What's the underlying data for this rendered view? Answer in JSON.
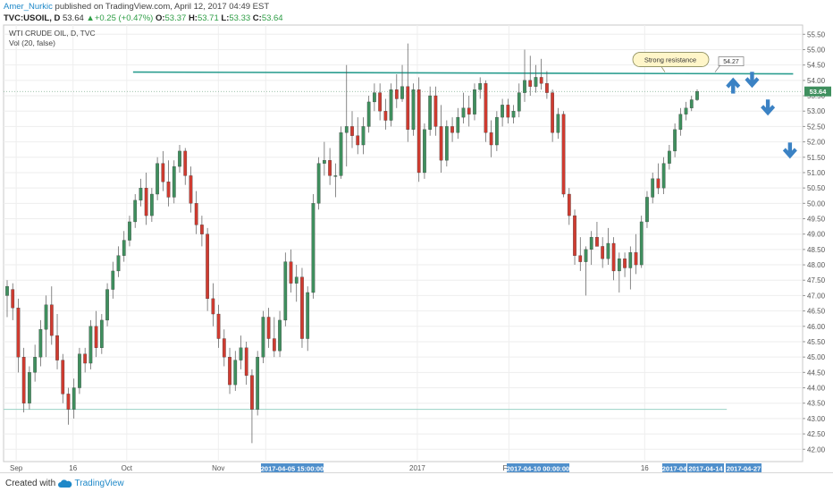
{
  "header": {
    "author": "Amer_Nurkic",
    "published": "published on TradingView.com, April 12, 2017 04:49 EST",
    "symbol": "TVC:USOIL, D",
    "price": "53.64",
    "change": "+0.25 (+0.47%)",
    "o_label": "O:",
    "o_value": "53.37",
    "h_label": "H:",
    "h_value": "53.71",
    "l_label": "L:",
    "l_value": "53.33",
    "c_label": "C:",
    "c_value": "53.64"
  },
  "legend": {
    "title": "WTI CRUDE OIL, D, TVC",
    "volume": "Vol (20, false)"
  },
  "footer": {
    "created": "Created with",
    "brand": "TradingView"
  },
  "colors": {
    "up": "#3f8f5e",
    "down": "#cf3b30",
    "resistance": "#2a9d8f",
    "arrow": "#3b82c4"
  },
  "chart_data": {
    "type": "candlestick",
    "title": "WTI CRUDE OIL, D, TVC",
    "ylim": [
      41.6,
      55.8
    ],
    "y_ticks": [
      "55.50",
      "55.00",
      "54.50",
      "54.00",
      "53.50",
      "53.00",
      "52.50",
      "52.00",
      "51.50",
      "51.00",
      "50.50",
      "50.00",
      "49.50",
      "49.00",
      "48.50",
      "48.00",
      "47.50",
      "47.00",
      "46.50",
      "46.00",
      "45.50",
      "45.00",
      "44.50",
      "44.00",
      "43.50",
      "43.00",
      "42.50",
      "42.00"
    ],
    "x_ticks": [
      "Sep",
      "16",
      "Oct",
      "Nov",
      "16",
      "2017",
      "Feb",
      "16"
    ],
    "x_tick_pos": [
      "2016-08-29",
      "2016-09-16",
      "2016-10-03",
      "2016-11-01",
      "2016-11-16",
      "2017-01-03",
      "2017-02-01",
      "2017-03-16"
    ],
    "x_range": [
      "2016-08-25",
      "2017-05-05"
    ],
    "highlighted_dates": [
      "2017-04-05 15:00:00",
      "2017-04-10 00:00:00",
      "2017-04",
      "2017-04-14",
      "2017-04-27"
    ],
    "last_price": "53.64",
    "resistance": {
      "value": 54.27,
      "label": "Strong resistance",
      "from": "2016-10-05",
      "to": "2017-05-02"
    },
    "support_line": {
      "value": 43.3,
      "from": "2016-08-25",
      "to": "2017-04-11"
    },
    "annotations": [
      {
        "type": "arrow-up",
        "date": "2017-04-13",
        "value": 53.95
      },
      {
        "type": "arrow-down",
        "date": "2017-04-19",
        "value": 53.9
      },
      {
        "type": "arrow-down",
        "date": "2017-04-24",
        "value": 53.0
      },
      {
        "type": "arrow-down",
        "date": "2017-05-01",
        "value": 51.6
      }
    ],
    "candles": [
      {
        "o": 47.0,
        "h": 47.5,
        "l": 46.3,
        "c": 47.3
      },
      {
        "o": 47.2,
        "h": 47.4,
        "l": 46.2,
        "c": 46.6
      },
      {
        "o": 46.6,
        "h": 46.9,
        "l": 44.5,
        "c": 45.0
      },
      {
        "o": 45.0,
        "h": 45.3,
        "l": 43.2,
        "c": 43.5
      },
      {
        "o": 43.5,
        "h": 44.7,
        "l": 43.3,
        "c": 44.5
      },
      {
        "o": 44.5,
        "h": 45.4,
        "l": 44.2,
        "c": 45.0
      },
      {
        "o": 45.0,
        "h": 46.2,
        "l": 44.7,
        "c": 45.9
      },
      {
        "o": 45.9,
        "h": 47.0,
        "l": 45.0,
        "c": 46.7
      },
      {
        "o": 46.7,
        "h": 47.3,
        "l": 45.4,
        "c": 45.7
      },
      {
        "o": 45.7,
        "h": 46.4,
        "l": 44.6,
        "c": 44.9
      },
      {
        "o": 44.9,
        "h": 45.1,
        "l": 43.5,
        "c": 43.8
      },
      {
        "o": 43.8,
        "h": 44.0,
        "l": 42.8,
        "c": 43.3
      },
      {
        "o": 43.3,
        "h": 44.3,
        "l": 43.0,
        "c": 44.0
      },
      {
        "o": 44.0,
        "h": 45.3,
        "l": 43.8,
        "c": 45.1
      },
      {
        "o": 45.1,
        "h": 45.3,
        "l": 44.5,
        "c": 44.8
      },
      {
        "o": 44.8,
        "h": 46.2,
        "l": 44.6,
        "c": 46.0
      },
      {
        "o": 46.0,
        "h": 46.5,
        "l": 45.0,
        "c": 45.3
      },
      {
        "o": 45.3,
        "h": 46.4,
        "l": 45.1,
        "c": 46.2
      },
      {
        "o": 46.2,
        "h": 47.4,
        "l": 46.0,
        "c": 47.2
      },
      {
        "o": 47.2,
        "h": 48.1,
        "l": 46.9,
        "c": 47.8
      },
      {
        "o": 47.8,
        "h": 48.6,
        "l": 47.6,
        "c": 48.3
      },
      {
        "o": 48.3,
        "h": 49.1,
        "l": 48.1,
        "c": 48.8
      },
      {
        "o": 48.8,
        "h": 49.6,
        "l": 48.6,
        "c": 49.4
      },
      {
        "o": 49.4,
        "h": 50.3,
        "l": 49.2,
        "c": 50.1
      },
      {
        "o": 50.1,
        "h": 50.8,
        "l": 49.9,
        "c": 50.5
      },
      {
        "o": 50.5,
        "h": 51.0,
        "l": 49.3,
        "c": 49.6
      },
      {
        "o": 49.6,
        "h": 50.5,
        "l": 49.4,
        "c": 50.3
      },
      {
        "o": 50.3,
        "h": 51.5,
        "l": 50.1,
        "c": 51.3
      },
      {
        "o": 51.3,
        "h": 51.7,
        "l": 50.4,
        "c": 50.7
      },
      {
        "o": 50.7,
        "h": 51.4,
        "l": 49.9,
        "c": 50.2
      },
      {
        "o": 50.2,
        "h": 51.4,
        "l": 50.0,
        "c": 51.2
      },
      {
        "o": 51.2,
        "h": 51.9,
        "l": 51.0,
        "c": 51.7
      },
      {
        "o": 51.7,
        "h": 51.8,
        "l": 50.6,
        "c": 50.9
      },
      {
        "o": 50.9,
        "h": 51.2,
        "l": 49.7,
        "c": 50.0
      },
      {
        "o": 50.0,
        "h": 50.4,
        "l": 49.0,
        "c": 49.3
      },
      {
        "o": 49.3,
        "h": 49.6,
        "l": 48.6,
        "c": 49.0
      },
      {
        "o": 49.0,
        "h": 49.2,
        "l": 46.5,
        "c": 46.9
      },
      {
        "o": 46.9,
        "h": 47.4,
        "l": 46.0,
        "c": 46.4
      },
      {
        "o": 46.4,
        "h": 46.7,
        "l": 45.3,
        "c": 45.6
      },
      {
        "o": 45.6,
        "h": 45.9,
        "l": 44.7,
        "c": 45.0
      },
      {
        "o": 45.0,
        "h": 45.3,
        "l": 43.8,
        "c": 44.1
      },
      {
        "o": 44.1,
        "h": 45.2,
        "l": 43.9,
        "c": 44.9
      },
      {
        "o": 44.9,
        "h": 45.7,
        "l": 44.6,
        "c": 45.3
      },
      {
        "o": 45.3,
        "h": 45.5,
        "l": 44.1,
        "c": 44.4
      },
      {
        "o": 44.4,
        "h": 44.6,
        "l": 42.2,
        "c": 43.3
      },
      {
        "o": 43.3,
        "h": 45.2,
        "l": 43.1,
        "c": 45.0
      },
      {
        "o": 45.0,
        "h": 46.5,
        "l": 44.8,
        "c": 46.3
      },
      {
        "o": 46.3,
        "h": 46.6,
        "l": 45.3,
        "c": 45.6
      },
      {
        "o": 45.6,
        "h": 46.3,
        "l": 45.0,
        "c": 45.2
      },
      {
        "o": 45.2,
        "h": 46.5,
        "l": 45.0,
        "c": 46.2
      },
      {
        "o": 46.2,
        "h": 48.4,
        "l": 46.0,
        "c": 48.1
      },
      {
        "o": 48.1,
        "h": 48.5,
        "l": 47.1,
        "c": 47.4
      },
      {
        "o": 47.4,
        "h": 48.0,
        "l": 46.8,
        "c": 47.6
      },
      {
        "o": 47.6,
        "h": 47.9,
        "l": 45.3,
        "c": 45.6
      },
      {
        "o": 45.6,
        "h": 47.3,
        "l": 45.2,
        "c": 47.1
      },
      {
        "o": 47.1,
        "h": 50.3,
        "l": 46.9,
        "c": 50.0
      },
      {
        "o": 50.0,
        "h": 51.5,
        "l": 49.8,
        "c": 51.3
      },
      {
        "o": 51.3,
        "h": 52.0,
        "l": 50.9,
        "c": 51.4
      },
      {
        "o": 51.4,
        "h": 51.8,
        "l": 50.6,
        "c": 50.9
      },
      {
        "o": 50.9,
        "h": 51.3,
        "l": 50.2,
        "c": 50.9
      },
      {
        "o": 50.9,
        "h": 52.5,
        "l": 50.8,
        "c": 52.3
      },
      {
        "o": 52.3,
        "h": 54.5,
        "l": 51.2,
        "c": 52.5
      },
      {
        "o": 52.5,
        "h": 53.0,
        "l": 51.8,
        "c": 52.2
      },
      {
        "o": 52.2,
        "h": 52.8,
        "l": 51.6,
        "c": 51.9
      },
      {
        "o": 51.9,
        "h": 52.8,
        "l": 51.6,
        "c": 52.5
      },
      {
        "o": 52.5,
        "h": 53.5,
        "l": 52.3,
        "c": 53.3
      },
      {
        "o": 53.3,
        "h": 53.9,
        "l": 53.0,
        "c": 53.6
      },
      {
        "o": 53.6,
        "h": 53.9,
        "l": 52.7,
        "c": 53.0
      },
      {
        "o": 53.0,
        "h": 53.4,
        "l": 52.4,
        "c": 52.7
      },
      {
        "o": 52.7,
        "h": 53.9,
        "l": 52.5,
        "c": 53.7
      },
      {
        "o": 53.7,
        "h": 54.2,
        "l": 53.1,
        "c": 53.4
      },
      {
        "o": 53.4,
        "h": 54.5,
        "l": 53.3,
        "c": 53.8
      },
      {
        "o": 53.8,
        "h": 55.2,
        "l": 52.0,
        "c": 52.4
      },
      {
        "o": 52.4,
        "h": 53.9,
        "l": 52.2,
        "c": 53.7
      },
      {
        "o": 53.7,
        "h": 54.1,
        "l": 50.7,
        "c": 51.0
      },
      {
        "o": 51.0,
        "h": 52.6,
        "l": 50.8,
        "c": 52.4
      },
      {
        "o": 52.4,
        "h": 53.8,
        "l": 52.2,
        "c": 53.5
      },
      {
        "o": 53.5,
        "h": 53.8,
        "l": 52.2,
        "c": 52.5
      },
      {
        "o": 52.5,
        "h": 53.2,
        "l": 51.0,
        "c": 51.4
      },
      {
        "o": 51.4,
        "h": 52.7,
        "l": 51.2,
        "c": 52.5
      },
      {
        "o": 52.5,
        "h": 52.8,
        "l": 52.0,
        "c": 52.3
      },
      {
        "o": 52.3,
        "h": 53.1,
        "l": 52.1,
        "c": 52.8
      },
      {
        "o": 52.8,
        "h": 53.6,
        "l": 52.6,
        "c": 53.1
      },
      {
        "o": 53.1,
        "h": 53.5,
        "l": 52.5,
        "c": 52.9
      },
      {
        "o": 52.9,
        "h": 53.9,
        "l": 52.7,
        "c": 53.7
      },
      {
        "o": 53.7,
        "h": 54.1,
        "l": 53.4,
        "c": 53.9
      },
      {
        "o": 53.9,
        "h": 54.0,
        "l": 52.0,
        "c": 52.3
      },
      {
        "o": 52.3,
        "h": 52.7,
        "l": 51.5,
        "c": 51.9
      },
      {
        "o": 51.9,
        "h": 53.0,
        "l": 51.7,
        "c": 52.8
      },
      {
        "o": 52.8,
        "h": 53.4,
        "l": 52.5,
        "c": 53.2
      },
      {
        "o": 53.2,
        "h": 53.4,
        "l": 52.6,
        "c": 52.8
      },
      {
        "o": 52.8,
        "h": 53.2,
        "l": 52.6,
        "c": 53.0
      },
      {
        "o": 53.0,
        "h": 53.9,
        "l": 52.8,
        "c": 53.6
      },
      {
        "o": 53.6,
        "h": 55.0,
        "l": 53.3,
        "c": 54.0
      },
      {
        "o": 54.0,
        "h": 54.8,
        "l": 53.5,
        "c": 53.8
      },
      {
        "o": 53.8,
        "h": 54.5,
        "l": 53.6,
        "c": 54.1
      },
      {
        "o": 54.1,
        "h": 54.7,
        "l": 53.7,
        "c": 53.9
      },
      {
        "o": 53.9,
        "h": 54.3,
        "l": 53.4,
        "c": 53.6
      },
      {
        "o": 53.6,
        "h": 53.7,
        "l": 52.0,
        "c": 52.3
      },
      {
        "o": 52.3,
        "h": 53.1,
        "l": 52.1,
        "c": 52.9
      },
      {
        "o": 52.9,
        "h": 53.0,
        "l": 50.2,
        "c": 50.3
      },
      {
        "o": 50.3,
        "h": 50.5,
        "l": 49.3,
        "c": 49.6
      },
      {
        "o": 49.6,
        "h": 49.8,
        "l": 48.0,
        "c": 48.3
      },
      {
        "o": 48.3,
        "h": 48.9,
        "l": 47.8,
        "c": 48.1
      },
      {
        "o": 48.1,
        "h": 48.6,
        "l": 47.0,
        "c": 48.5
      },
      {
        "o": 48.5,
        "h": 49.1,
        "l": 48.0,
        "c": 48.9
      },
      {
        "o": 48.9,
        "h": 49.4,
        "l": 48.6,
        "c": 48.6
      },
      {
        "o": 48.6,
        "h": 48.9,
        "l": 47.9,
        "c": 48.2
      },
      {
        "o": 48.2,
        "h": 49.2,
        "l": 48.0,
        "c": 48.7
      },
      {
        "o": 48.7,
        "h": 48.9,
        "l": 47.5,
        "c": 47.8
      },
      {
        "o": 47.8,
        "h": 48.4,
        "l": 47.1,
        "c": 48.2
      },
      {
        "o": 48.2,
        "h": 48.4,
        "l": 47.6,
        "c": 47.9
      },
      {
        "o": 47.9,
        "h": 48.6,
        "l": 47.2,
        "c": 48.4
      },
      {
        "o": 48.4,
        "h": 49.0,
        "l": 47.7,
        "c": 48.0
      },
      {
        "o": 48.0,
        "h": 49.6,
        "l": 47.9,
        "c": 49.4
      },
      {
        "o": 49.4,
        "h": 50.4,
        "l": 49.2,
        "c": 50.2
      },
      {
        "o": 50.2,
        "h": 51.0,
        "l": 50.0,
        "c": 50.8
      },
      {
        "o": 50.8,
        "h": 51.3,
        "l": 50.3,
        "c": 50.5
      },
      {
        "o": 50.5,
        "h": 51.5,
        "l": 50.3,
        "c": 51.3
      },
      {
        "o": 51.3,
        "h": 51.9,
        "l": 51.1,
        "c": 51.7
      },
      {
        "o": 51.7,
        "h": 52.6,
        "l": 51.5,
        "c": 52.4
      },
      {
        "o": 52.4,
        "h": 53.1,
        "l": 52.2,
        "c": 52.9
      },
      {
        "o": 52.9,
        "h": 53.3,
        "l": 52.7,
        "c": 53.1
      },
      {
        "o": 53.1,
        "h": 53.5,
        "l": 53.0,
        "c": 53.37
      },
      {
        "o": 53.37,
        "h": 53.71,
        "l": 53.33,
        "c": 53.64
      }
    ]
  }
}
